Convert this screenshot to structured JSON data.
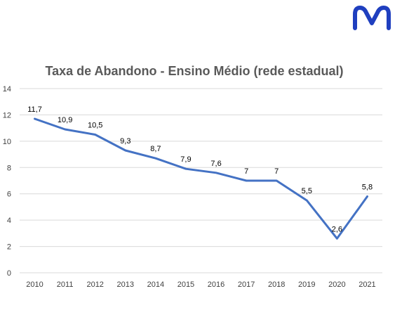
{
  "logo": {
    "name": "brand-logo",
    "color": "#1f3fbf"
  },
  "chart_data": {
    "type": "line",
    "title": "Taxa de Abandono - Ensino Médio (rede estadual)",
    "xlabel": "",
    "ylabel": "",
    "categories": [
      "2010",
      "2011",
      "2012",
      "2013",
      "2014",
      "2015",
      "2016",
      "2017",
      "2018",
      "2019",
      "2020",
      "2021"
    ],
    "values": [
      11.7,
      10.9,
      10.5,
      9.3,
      8.7,
      7.9,
      7.6,
      7,
      7,
      5.5,
      2.6,
      5.8
    ],
    "data_labels": [
      "11,7",
      "10,9",
      "10,5",
      "9,3",
      "8,7",
      "7,9",
      "7,6",
      "7",
      "7",
      "5,5",
      "2,6",
      "5,8"
    ],
    "ylim": [
      0,
      14
    ],
    "yticks": [
      0,
      2,
      4,
      6,
      8,
      10,
      12,
      14
    ],
    "grid": true,
    "legend": "none",
    "line_color": "#4472c4",
    "grid_color": "#d9d9d9"
  }
}
